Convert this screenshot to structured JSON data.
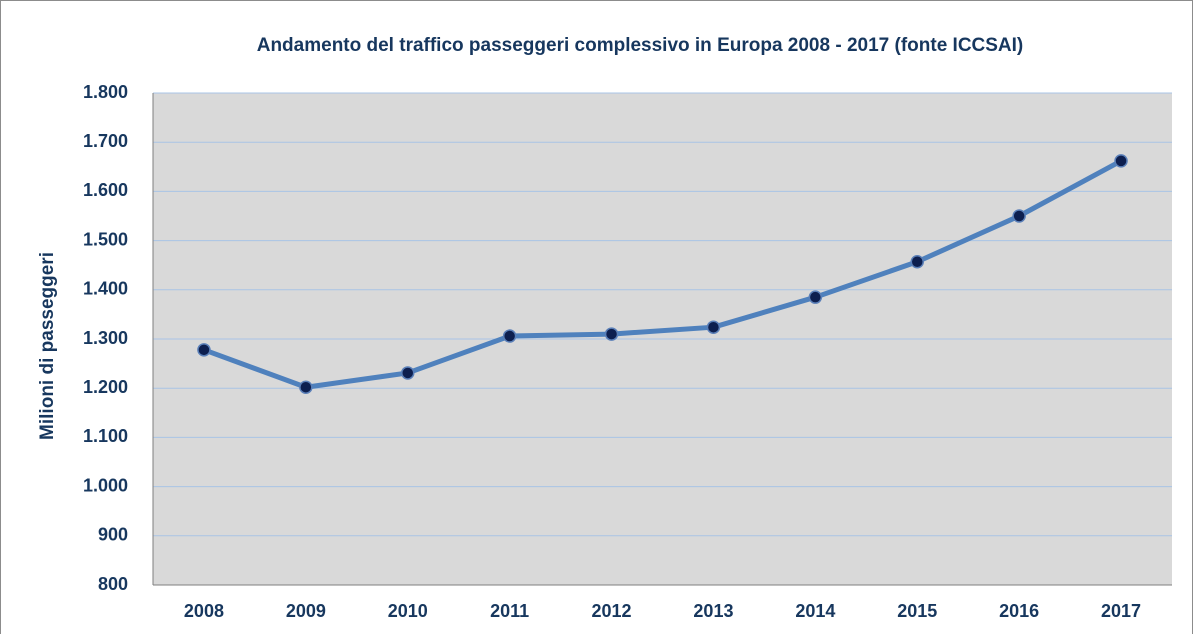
{
  "chart_data": {
    "type": "line",
    "title": "Andamento del traffico passeggeri complessivo in Europa 2008  - 2017 (fonte ICCSAI)",
    "y_label": "Milioni di passeggeri",
    "categories": [
      "2008",
      "2009",
      "2010",
      "2011",
      "2012",
      "2013",
      "2014",
      "2015",
      "2016",
      "2017"
    ],
    "values": [
      1278,
      1202,
      1231,
      1306,
      1310,
      1324,
      1385,
      1457,
      1550,
      1662
    ],
    "color": "#4f81bd",
    "marker_color": "#0d1f4f",
    "ylim": [
      800,
      1800
    ],
    "yticks": [
      800,
      900,
      {
        "value": 1000,
        "label": "1.000"
      },
      {
        "value": 1100,
        "label": "1.100"
      },
      {
        "value": 1200,
        "label": "1.200"
      },
      {
        "value": 1300,
        "label": "1.300"
      },
      {
        "value": 1400,
        "label": "1.400"
      },
      {
        "value": 1500,
        "label": "1.500"
      },
      {
        "value": 1600,
        "label": "1.600"
      },
      {
        "value": 1700,
        "label": "1.700"
      },
      {
        "value": 1800,
        "label": "1.800"
      }
    ],
    "grid": true
  }
}
